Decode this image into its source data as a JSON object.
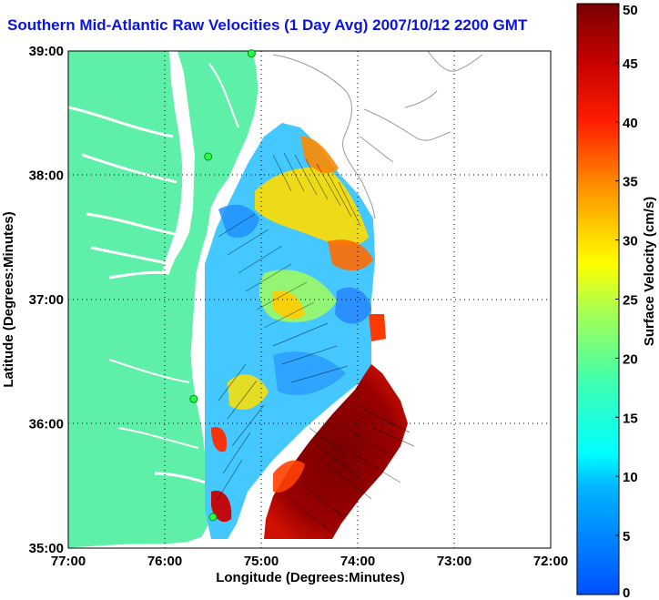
{
  "title": "Southern Mid-Atlantic Raw Velocities (1 Day Avg) 2007/10/12 2200 GMT",
  "map": {
    "x_axis_label": "Longitude (Degrees:Minutes)",
    "y_axis_label": "Latitude (Degrees:Minutes)",
    "x_ticks": [
      "77:00",
      "76:00",
      "75:00",
      "74:00",
      "73:00",
      "72:00"
    ],
    "y_ticks": [
      "39:00",
      "38:00",
      "37:00",
      "36:00",
      "35:00"
    ],
    "lon_range": [
      -77,
      -72
    ],
    "lat_range": [
      35,
      39
    ],
    "land_color": "#5ef0a8",
    "grid": "dotted"
  },
  "colorbar": {
    "label": "Surface Velocity (cm/s)",
    "range": [
      0,
      50
    ],
    "ticks": [
      "0",
      "5",
      "10",
      "15",
      "20",
      "25",
      "30",
      "35",
      "40",
      "45",
      "50"
    ]
  },
  "stations": [
    {
      "name": "station",
      "lon": -75.1,
      "lat": 38.98
    },
    {
      "name": "station",
      "lon": -75.55,
      "lat": 38.15
    },
    {
      "name": "station",
      "lon": -75.7,
      "lat": 36.2
    },
    {
      "name": "station",
      "lon": -75.5,
      "lat": 35.25
    }
  ]
}
